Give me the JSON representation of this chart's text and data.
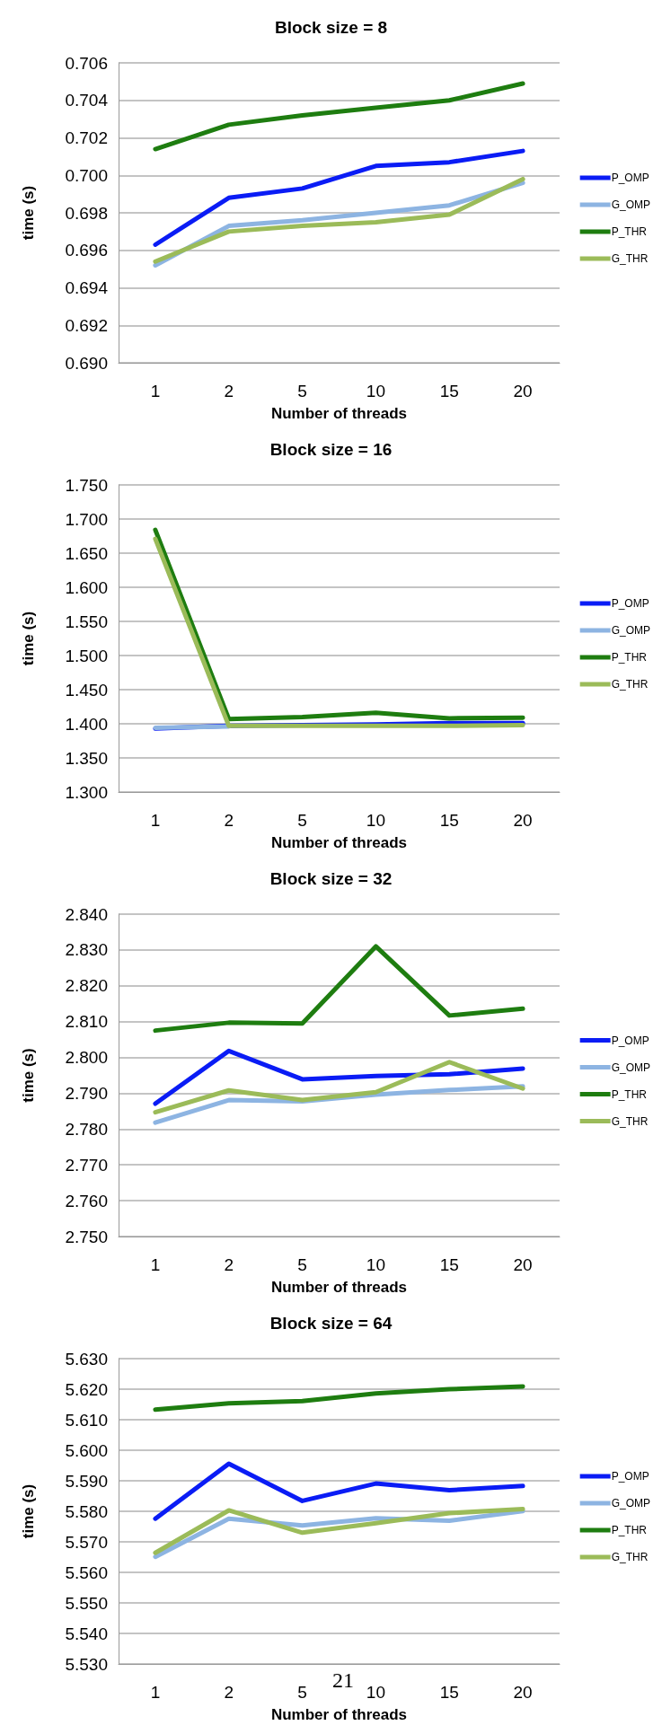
{
  "chart_data": [
    {
      "type": "line",
      "title": "Block size = 8",
      "xlabel": "Number of threads",
      "ylabel": "time (s)",
      "categories": [
        "1",
        "2",
        "5",
        "10",
        "15",
        "20"
      ],
      "ylim": [
        0.69,
        0.706
      ],
      "yticks": [
        {
          "value": 0.69,
          "label": "0.690"
        },
        {
          "value": 0.692,
          "label": "0.692"
        },
        {
          "value": 0.694,
          "label": "0.694"
        },
        {
          "value": 0.696,
          "label": "0.696"
        },
        {
          "value": 0.698,
          "label": "0.698"
        },
        {
          "value": 0.7,
          "label": "0.700"
        },
        {
          "value": 0.702,
          "label": "0.702"
        },
        {
          "value": 0.704,
          "label": "0.704"
        },
        {
          "value": 0.706,
          "label": "0.706"
        }
      ],
      "grid": "y",
      "legend": "right",
      "marker": "none",
      "line_style": "solid",
      "series": [
        {
          "name": "P_OMP",
          "color": "#0a1cf5",
          "values": [
            0.6963,
            0.6988,
            0.6993,
            0.7005,
            0.7007,
            0.7013
          ]
        },
        {
          "name": "G_OMP",
          "color": "#8db4e2",
          "values": [
            0.6952,
            0.6973,
            0.6976,
            0.698,
            0.6984,
            0.6996
          ]
        },
        {
          "name": "P_THR",
          "color": "#1e7d10",
          "values": [
            0.7014,
            0.7027,
            0.7032,
            0.7036,
            0.704,
            0.7049
          ]
        },
        {
          "name": "G_THR",
          "color": "#9bbb59",
          "values": [
            0.6954,
            0.697,
            0.6973,
            0.6975,
            0.6979,
            0.6998
          ]
        }
      ]
    },
    {
      "type": "line",
      "title": "Block size = 16",
      "xlabel": "Number of threads",
      "ylabel": "time (s)",
      "categories": [
        "1",
        "2",
        "5",
        "10",
        "15",
        "20"
      ],
      "ylim": [
        1.3,
        1.75
      ],
      "yticks": [
        {
          "value": 1.3,
          "label": "1.300"
        },
        {
          "value": 1.35,
          "label": "1.350"
        },
        {
          "value": 1.4,
          "label": "1.400"
        },
        {
          "value": 1.45,
          "label": "1.450"
        },
        {
          "value": 1.5,
          "label": "1.500"
        },
        {
          "value": 1.55,
          "label": "1.550"
        },
        {
          "value": 1.6,
          "label": "1.600"
        },
        {
          "value": 1.65,
          "label": "1.650"
        },
        {
          "value": 1.7,
          "label": "1.700"
        },
        {
          "value": 1.75,
          "label": "1.750"
        }
      ],
      "grid": "y",
      "legend": "right",
      "marker": "none",
      "line_style": "solid",
      "series": [
        {
          "name": "P_OMP",
          "color": "#0a1cf5",
          "values": [
            1.393,
            1.397,
            1.398,
            1.399,
            1.401,
            1.401
          ]
        },
        {
          "name": "G_OMP",
          "color": "#8db4e2",
          "values": [
            1.394,
            1.396,
            null,
            null,
            null,
            null
          ]
        },
        {
          "name": "P_THR",
          "color": "#1e7d10",
          "values": [
            1.684,
            1.407,
            1.41,
            1.416,
            1.408,
            1.409
          ]
        },
        {
          "name": "G_THR",
          "color": "#9bbb59",
          "values": [
            1.671,
            1.397,
            1.397,
            1.397,
            1.397,
            1.398
          ]
        }
      ]
    },
    {
      "type": "line",
      "title": "Block size = 32",
      "xlabel": "Number of threads",
      "ylabel": "time (s)",
      "categories": [
        "1",
        "2",
        "5",
        "10",
        "15",
        "20"
      ],
      "ylim": [
        2.75,
        2.84
      ],
      "yticks": [
        {
          "value": 2.75,
          "label": "2.750"
        },
        {
          "value": 2.76,
          "label": "2.760"
        },
        {
          "value": 2.77,
          "label": "2.770"
        },
        {
          "value": 2.78,
          "label": "2.780"
        },
        {
          "value": 2.79,
          "label": "2.790"
        },
        {
          "value": 2.8,
          "label": "2.800"
        },
        {
          "value": 2.81,
          "label": "2.810"
        },
        {
          "value": 2.82,
          "label": "2.820"
        },
        {
          "value": 2.83,
          "label": "2.830"
        },
        {
          "value": 2.84,
          "label": "2.840"
        }
      ],
      "grid": "y",
      "legend": "right",
      "marker": "none",
      "line_style": "solid",
      "series": [
        {
          "name": "P_OMP",
          "color": "#0a1cf5",
          "values": [
            2.7871,
            2.8018,
            2.7939,
            2.7948,
            2.7953,
            2.7969
          ]
        },
        {
          "name": "G_OMP",
          "color": "#8db4e2",
          "values": [
            2.7818,
            2.7881,
            2.7877,
            2.7896,
            2.7909,
            2.7919
          ]
        },
        {
          "name": "P_THR",
          "color": "#1e7d10",
          "values": [
            2.8075,
            2.8097,
            2.8095,
            2.831,
            2.8117,
            2.8136
          ]
        },
        {
          "name": "G_THR",
          "color": "#9bbb59",
          "values": [
            2.7847,
            2.7908,
            2.7881,
            2.7903,
            2.7987,
            2.7913
          ]
        }
      ]
    },
    {
      "type": "line",
      "title": "Block size = 64",
      "xlabel": "Number of threads",
      "ylabel": "time (s)",
      "categories": [
        "1",
        "2",
        "5",
        "10",
        "15",
        "20"
      ],
      "ylim": [
        5.53,
        5.63
      ],
      "yticks": [
        {
          "value": 5.53,
          "label": "5.530"
        },
        {
          "value": 5.54,
          "label": "5.540"
        },
        {
          "value": 5.55,
          "label": "5.550"
        },
        {
          "value": 5.56,
          "label": "5.560"
        },
        {
          "value": 5.57,
          "label": "5.570"
        },
        {
          "value": 5.58,
          "label": "5.580"
        },
        {
          "value": 5.59,
          "label": "5.590"
        },
        {
          "value": 5.6,
          "label": "5.600"
        },
        {
          "value": 5.61,
          "label": "5.610"
        },
        {
          "value": 5.62,
          "label": "5.620"
        },
        {
          "value": 5.63,
          "label": "5.630"
        }
      ],
      "grid": "y",
      "legend": "right",
      "marker": "none",
      "line_style": "solid",
      "annotations": [
        "21"
      ],
      "series": [
        {
          "name": "P_OMP",
          "color": "#0a1cf5",
          "values": [
            5.5776,
            5.5956,
            5.5834,
            5.5891,
            5.5869,
            5.5883
          ]
        },
        {
          "name": "G_OMP",
          "color": "#8db4e2",
          "values": [
            5.5651,
            5.5776,
            5.5754,
            5.5777,
            5.5769,
            5.5801
          ]
        },
        {
          "name": "P_THR",
          "color": "#1e7d10",
          "values": [
            5.6133,
            5.6154,
            5.6161,
            5.6186,
            5.62,
            5.6209
          ]
        },
        {
          "name": "G_THR",
          "color": "#9bbb59",
          "values": [
            5.5664,
            5.5803,
            5.573,
            5.5761,
            5.5794,
            5.5807
          ]
        }
      ]
    }
  ]
}
